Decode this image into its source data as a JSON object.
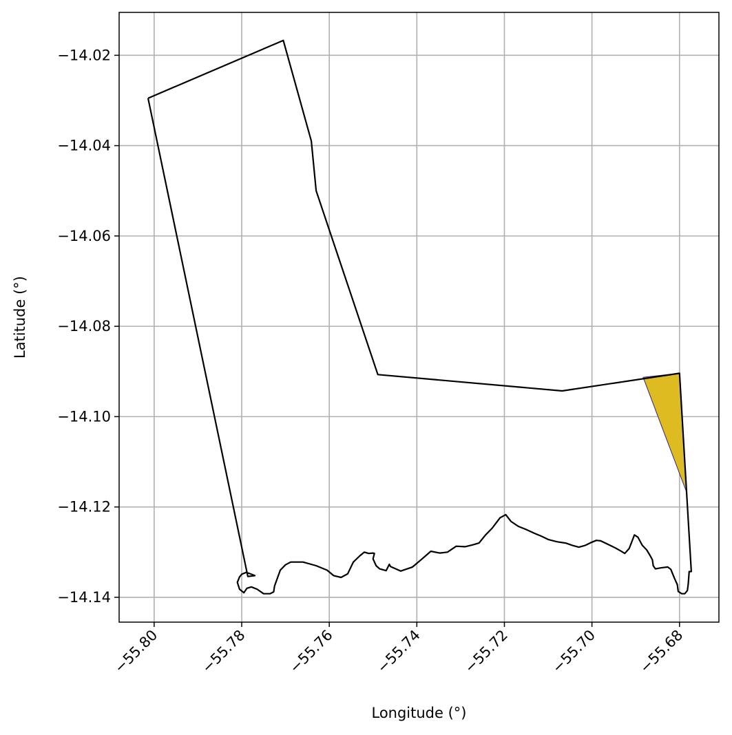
{
  "chart_data": {
    "type": "map",
    "xlabel": "Longitude (°)",
    "ylabel": "Latitude (°)",
    "xlim": [
      -55.808,
      -55.671
    ],
    "ylim": [
      -14.1455,
      -14.0105
    ],
    "grid": true,
    "x_ticks": [
      -55.8,
      -55.78,
      -55.76,
      -55.74,
      -55.72,
      -55.7,
      -55.68
    ],
    "x_tick_labels": [
      "−55.80",
      "−55.78",
      "−55.76",
      "−55.74",
      "−55.72",
      "−55.70",
      "−55.68"
    ],
    "y_ticks": [
      -14.02,
      -14.04,
      -14.06,
      -14.08,
      -14.1,
      -14.12,
      -14.14
    ],
    "y_tick_labels": [
      "−14.02",
      "−14.04",
      "−14.06",
      "−14.08",
      "−14.10",
      "−14.12",
      "−14.14"
    ],
    "boundary": {
      "edge_color": "#000000",
      "fill": "none",
      "points": [
        [
          -55.8014,
          -14.0295
        ],
        [
          -55.7705,
          -14.0167
        ],
        [
          -55.7641,
          -14.039
        ],
        [
          -55.763,
          -14.05
        ],
        [
          -55.7489,
          -14.0907
        ],
        [
          -55.7068,
          -14.0943
        ],
        [
          -55.68,
          -14.0904
        ],
        [
          -55.6773,
          -14.1343
        ],
        [
          -55.6778,
          -14.1343
        ],
        [
          -55.678,
          -14.137
        ],
        [
          -55.6782,
          -14.1385
        ],
        [
          -55.6788,
          -14.1392
        ],
        [
          -55.6795,
          -14.1392
        ],
        [
          -55.6803,
          -14.1387
        ],
        [
          -55.6805,
          -14.1372
        ],
        [
          -55.6812,
          -14.1357
        ],
        [
          -55.682,
          -14.1338
        ],
        [
          -55.6827,
          -14.1333
        ],
        [
          -55.6843,
          -14.1335
        ],
        [
          -55.6855,
          -14.1337
        ],
        [
          -55.686,
          -14.133
        ],
        [
          -55.6862,
          -14.1317
        ],
        [
          -55.6867,
          -14.1308
        ],
        [
          -55.6875,
          -14.1295
        ],
        [
          -55.6885,
          -14.1285
        ],
        [
          -55.6895,
          -14.1267
        ],
        [
          -55.6903,
          -14.1262
        ],
        [
          -55.6915,
          -14.1292
        ],
        [
          -55.6925,
          -14.1303
        ],
        [
          -55.6935,
          -14.1297
        ],
        [
          -55.6948,
          -14.129
        ],
        [
          -55.6965,
          -14.1282
        ],
        [
          -55.698,
          -14.1275
        ],
        [
          -55.699,
          -14.1274
        ],
        [
          -55.7,
          -14.1278
        ],
        [
          -55.7015,
          -14.1285
        ],
        [
          -55.703,
          -14.1289
        ],
        [
          -55.7045,
          -14.1285
        ],
        [
          -55.706,
          -14.128
        ],
        [
          -55.708,
          -14.1277
        ],
        [
          -55.71,
          -14.1272
        ],
        [
          -55.7115,
          -14.1265
        ],
        [
          -55.7132,
          -14.1258
        ],
        [
          -55.715,
          -14.125
        ],
        [
          -55.7168,
          -14.1243
        ],
        [
          -55.7185,
          -14.1232
        ],
        [
          -55.7197,
          -14.1217
        ],
        [
          -55.721,
          -14.1224
        ],
        [
          -55.7228,
          -14.1247
        ],
        [
          -55.7243,
          -14.1262
        ],
        [
          -55.7258,
          -14.128
        ],
        [
          -55.7273,
          -14.1284
        ],
        [
          -55.729,
          -14.1288
        ],
        [
          -55.731,
          -14.1287
        ],
        [
          -55.733,
          -14.13
        ],
        [
          -55.7348,
          -14.1302
        ],
        [
          -55.7368,
          -14.1298
        ],
        [
          -55.7388,
          -14.1315
        ],
        [
          -55.741,
          -14.1333
        ],
        [
          -55.7437,
          -14.1342
        ],
        [
          -55.746,
          -14.1332
        ],
        [
          -55.7463,
          -14.1327
        ],
        [
          -55.747,
          -14.1341
        ],
        [
          -55.7485,
          -14.1337
        ],
        [
          -55.7493,
          -14.133
        ],
        [
          -55.75,
          -14.1315
        ],
        [
          -55.7497,
          -14.1303
        ],
        [
          -55.75,
          -14.1302
        ],
        [
          -55.751,
          -14.1303
        ],
        [
          -55.752,
          -14.13
        ],
        [
          -55.753,
          -14.1308
        ],
        [
          -55.7545,
          -14.1322
        ],
        [
          -55.7558,
          -14.1348
        ],
        [
          -55.7573,
          -14.1356
        ],
        [
          -55.759,
          -14.1352
        ],
        [
          -55.7605,
          -14.134
        ],
        [
          -55.763,
          -14.133
        ],
        [
          -55.766,
          -14.1322
        ],
        [
          -55.7688,
          -14.1322
        ],
        [
          -55.77,
          -14.1328
        ],
        [
          -55.7712,
          -14.134
        ],
        [
          -55.7725,
          -14.1375
        ],
        [
          -55.7727,
          -14.1388
        ],
        [
          -55.7735,
          -14.1392
        ],
        [
          -55.775,
          -14.1392
        ],
        [
          -55.7765,
          -14.1382
        ],
        [
          -55.7778,
          -14.1377
        ],
        [
          -55.7788,
          -14.138
        ],
        [
          -55.7795,
          -14.139
        ],
        [
          -55.7805,
          -14.1382
        ],
        [
          -55.781,
          -14.1367
        ],
        [
          -55.7805,
          -14.1355
        ],
        [
          -55.78,
          -14.1349
        ],
        [
          -55.779,
          -14.1345
        ],
        [
          -55.7783,
          -14.1347
        ],
        [
          -55.777,
          -14.1352
        ],
        [
          -55.7786,
          -14.1354
        ],
        [
          -55.8014,
          -14.0295
        ]
      ]
    },
    "highlight": {
      "fill_color": "#dfbb22",
      "edge_color": "#1f1fbf",
      "points": [
        [
          -55.6883,
          -14.0913
        ],
        [
          -55.68,
          -14.0904
        ],
        [
          -55.6784,
          -14.1167
        ],
        [
          -55.6883,
          -14.0913
        ]
      ]
    }
  }
}
